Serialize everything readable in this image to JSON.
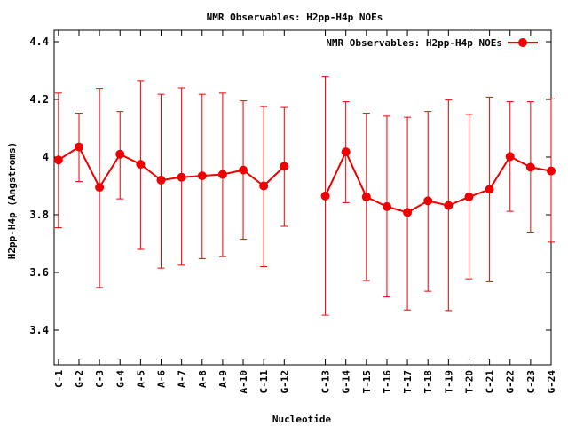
{
  "chart_data": {
    "type": "line",
    "title": "NMR Observables: H2pp-H4p NOEs",
    "xlabel": "Nucleotide",
    "ylabel": "H2pp-H4p (Angstroms)",
    "ylim": [
      3.28,
      4.44
    ],
    "yticks": [
      3.4,
      3.6,
      3.8,
      4,
      4.2,
      4.4
    ],
    "ytick_labels": [
      "3.4",
      "3.6",
      "3.8",
      "4",
      "4.2",
      "4.4"
    ],
    "grid": false,
    "legend_position": "top-right",
    "categories": [
      "C-1",
      "G-2",
      "C-3",
      "G-4",
      "A-5",
      "A-6",
      "A-7",
      "A-8",
      "A-9",
      "A-10",
      "C-11",
      "G-12",
      "C-13",
      "G-14",
      "T-15",
      "T-16",
      "T-17",
      "T-18",
      "T-19",
      "T-20",
      "C-21",
      "G-22",
      "C-23",
      "G-24"
    ],
    "positions": [
      1,
      2,
      3,
      4,
      5,
      6,
      7,
      8,
      9,
      10,
      11,
      12,
      14,
      15,
      16,
      17,
      18,
      19,
      20,
      21,
      22,
      23,
      24,
      25
    ],
    "series": [
      {
        "name": "NMR Observables: H2pp-H4p NOEs",
        "color": "#ee0000",
        "segments": [
          [
            0,
            11
          ],
          [
            12,
            23
          ]
        ],
        "values": [
          3.99,
          4.035,
          3.895,
          4.01,
          3.975,
          3.92,
          3.93,
          3.935,
          3.94,
          3.955,
          3.9,
          3.968,
          3.865,
          4.018,
          3.862,
          3.828,
          3.808,
          3.848,
          3.832,
          3.862,
          3.888,
          4.002,
          3.965,
          3.952
        ],
        "error_low": [
          3.755,
          3.915,
          3.548,
          3.855,
          3.68,
          3.615,
          3.625,
          3.648,
          3.655,
          3.715,
          3.62,
          3.76,
          3.452,
          3.842,
          3.572,
          3.515,
          3.47,
          3.535,
          3.468,
          3.578,
          3.568,
          3.812,
          3.74,
          3.705
        ],
        "error_high": [
          4.222,
          4.152,
          4.238,
          4.158,
          4.265,
          4.218,
          4.24,
          4.218,
          4.222,
          4.195,
          4.175,
          4.172,
          4.278,
          4.192,
          4.152,
          4.142,
          4.138,
          4.158,
          4.198,
          4.148,
          4.208,
          4.192,
          4.192,
          4.202
        ]
      }
    ]
  }
}
